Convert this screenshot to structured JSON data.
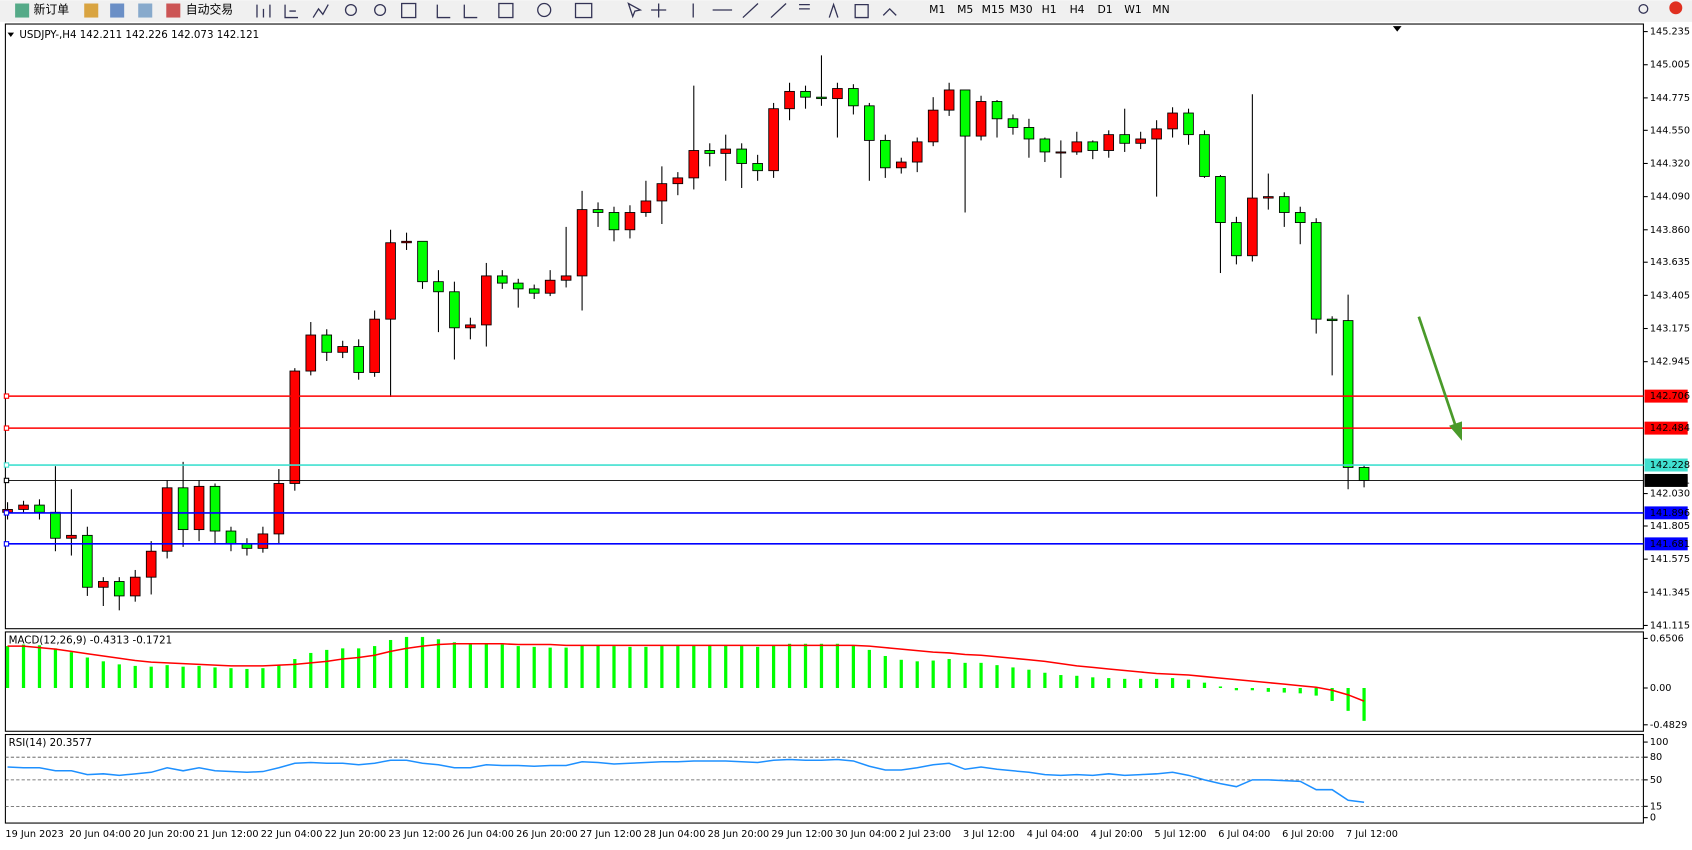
{
  "toolbar": {
    "new_order": "新订单",
    "auto_trading": "自动交易",
    "timeframes": [
      "M1",
      "M5",
      "M15",
      "M30",
      "H1",
      "H4",
      "D1",
      "W1",
      "MN"
    ]
  },
  "chart_data": [
    {
      "type": "candlestick",
      "title": "USDJPY-,H4  142.211 142.226 142.073 142.121",
      "categories": [
        "19 Jun 2023",
        null,
        null,
        null,
        "20 Jun 04:00",
        null,
        null,
        null,
        "20 Jun 20:00",
        null,
        null,
        null,
        "21 Jun 12:00",
        null,
        null,
        null,
        "22 Jun 04:00",
        null,
        null,
        null,
        "22 Jun 20:00",
        null,
        null,
        null,
        "23 Jun 12:00",
        null,
        null,
        null,
        "26 Jun 04:00",
        null,
        null,
        null,
        "26 Jun 20:00",
        null,
        null,
        null,
        "27 Jun 12:00",
        null,
        null,
        null,
        "28 Jun 04:00",
        null,
        null,
        null,
        "28 Jun 20:00",
        null,
        null,
        null,
        "29 Jun 12:00",
        null,
        null,
        null,
        "30 Jun 04:00",
        null,
        null,
        null,
        "2 Jul 23:00",
        null,
        null,
        null,
        "3 Jul 12:00",
        null,
        null,
        null,
        "4 Jul 04:00",
        null,
        null,
        null,
        "4 Jul 20:00",
        null,
        null,
        null,
        "5 Jul 12:00",
        null,
        null,
        null,
        "6 Jul 04:00",
        null,
        null,
        null,
        "6 Jul 20:00",
        null,
        null,
        null,
        "7 Jul 12:00",
        null
      ],
      "open": [
        141.9,
        141.92,
        141.95,
        141.9,
        141.72,
        141.74,
        141.38,
        141.42,
        141.32,
        141.45,
        141.63,
        142.07,
        141.78,
        142.08,
        141.77,
        141.68,
        141.65,
        141.75,
        142.1,
        142.88,
        143.13,
        143.01,
        143.05,
        142.87,
        143.24,
        143.77,
        143.78,
        143.5,
        143.43,
        143.18,
        143.2,
        143.54,
        143.49,
        143.45,
        143.42,
        143.51,
        143.54,
        144.0,
        143.98,
        143.86,
        143.98,
        144.06,
        144.18,
        144.22,
        144.41,
        144.39,
        144.42,
        144.32,
        144.27,
        144.7,
        144.82,
        144.78,
        144.77,
        144.84,
        144.72,
        144.48,
        144.29,
        144.33,
        144.47,
        144.69,
        144.83,
        144.51,
        144.75,
        144.63,
        144.57,
        144.49,
        144.4,
        144.4,
        144.47,
        144.41,
        144.52,
        144.46,
        144.49,
        144.56,
        144.67,
        144.52,
        144.23,
        143.91,
        143.68,
        144.08,
        144.09,
        143.98,
        143.91,
        143.24,
        143.23,
        142.211
      ],
      "high": [
        141.97,
        141.98,
        141.99,
        142.22,
        142.06,
        141.8,
        141.45,
        141.45,
        141.5,
        141.7,
        142.12,
        142.25,
        142.12,
        142.1,
        141.8,
        141.72,
        141.8,
        142.2,
        142.9,
        143.22,
        143.17,
        143.09,
        143.1,
        143.3,
        143.86,
        143.84,
        143.78,
        143.58,
        143.5,
        143.25,
        143.63,
        143.58,
        143.52,
        143.48,
        143.58,
        143.88,
        144.13,
        144.05,
        144.02,
        144.03,
        144.2,
        144.3,
        144.26,
        144.86,
        144.46,
        144.52,
        144.46,
        144.38,
        144.74,
        144.88,
        144.86,
        145.07,
        144.88,
        144.87,
        144.74,
        144.52,
        144.36,
        144.5,
        144.78,
        144.88,
        144.83,
        144.79,
        144.76,
        144.66,
        144.63,
        144.5,
        144.48,
        144.54,
        144.48,
        144.55,
        144.7,
        144.54,
        144.62,
        144.71,
        144.7,
        144.55,
        144.24,
        143.95,
        144.8,
        144.25,
        144.12,
        144.02,
        143.94,
        143.26,
        143.41,
        142.226
      ],
      "low": [
        141.85,
        141.9,
        141.85,
        141.63,
        141.6,
        141.32,
        141.25,
        141.22,
        141.28,
        141.33,
        141.58,
        141.66,
        141.7,
        141.68,
        141.63,
        141.6,
        141.62,
        141.68,
        142.05,
        142.85,
        142.95,
        142.97,
        142.82,
        142.84,
        142.7,
        143.72,
        143.45,
        143.15,
        142.96,
        143.1,
        143.05,
        143.45,
        143.32,
        143.38,
        143.4,
        143.46,
        143.3,
        143.88,
        143.78,
        143.8,
        143.95,
        143.9,
        144.1,
        144.14,
        144.3,
        144.2,
        144.15,
        144.2,
        144.22,
        144.62,
        144.7,
        144.72,
        144.5,
        144.66,
        144.2,
        144.22,
        144.25,
        144.26,
        144.44,
        144.65,
        143.98,
        144.48,
        144.5,
        144.52,
        144.36,
        144.33,
        144.22,
        144.38,
        144.35,
        144.36,
        144.4,
        144.42,
        144.09,
        144.5,
        144.45,
        144.22,
        143.56,
        143.62,
        143.64,
        144.0,
        143.88,
        143.76,
        143.14,
        142.85,
        142.06,
        142.073
      ],
      "close": [
        141.92,
        141.95,
        141.9,
        141.72,
        141.74,
        141.38,
        141.42,
        141.32,
        141.45,
        141.63,
        142.07,
        141.78,
        142.08,
        141.77,
        141.68,
        141.65,
        141.75,
        142.1,
        142.88,
        143.13,
        143.01,
        143.05,
        142.87,
        143.24,
        143.77,
        143.78,
        143.5,
        143.43,
        143.18,
        143.2,
        143.54,
        143.49,
        143.45,
        143.42,
        143.51,
        143.54,
        144.0,
        143.98,
        143.86,
        143.98,
        144.06,
        144.18,
        144.22,
        144.41,
        144.39,
        144.42,
        144.32,
        144.27,
        144.7,
        144.82,
        144.78,
        144.77,
        144.84,
        144.72,
        144.48,
        144.29,
        144.33,
        144.47,
        144.69,
        144.83,
        144.51,
        144.75,
        144.63,
        144.57,
        144.49,
        144.4,
        144.4,
        144.47,
        144.41,
        144.52,
        144.46,
        144.49,
        144.56,
        144.67,
        144.52,
        144.23,
        143.91,
        143.68,
        144.08,
        144.09,
        143.98,
        143.91,
        143.24,
        143.23,
        142.211,
        142.121
      ],
      "up_color": "#ff0000",
      "down_color": "#00ff00",
      "ylim": [
        141.115,
        145.235
      ],
      "yticks": [
        145.235,
        145.005,
        144.775,
        {
          "value": 144.55,
          "label": "144.550"
        },
        {
          "value": 144.32,
          "label": "144.320"
        },
        {
          "value": 144.09,
          "label": "144.090"
        },
        {
          "value": 143.86,
          "label": "143.860"
        },
        143.635,
        143.405,
        143.175,
        142.945,
        {
          "value": 142.03,
          "label": "142.030"
        },
        141.805,
        141.575,
        141.345,
        141.115
      ],
      "levels": [
        {
          "value": 142.706,
          "color": "#ff0000"
        },
        {
          "value": 142.484,
          "color": "#ff0000"
        },
        {
          "value": 142.228,
          "color": "#40e0d0"
        },
        {
          "value": 142.121,
          "color": "#000000"
        },
        {
          "value": 141.896,
          "color": "#0000ff"
        },
        {
          "value": 141.681,
          "color": "#0000ff"
        }
      ]
    },
    {
      "type": "macd",
      "title": "MACD(12,26,9) -0.4313 -0.1721",
      "histogram": {
        "color": "#00ff00",
        "values": [
          0.55,
          0.57,
          0.56,
          0.52,
          0.47,
          0.4,
          0.35,
          0.31,
          0.29,
          0.28,
          0.3,
          0.28,
          0.29,
          0.27,
          0.26,
          0.25,
          0.26,
          0.3,
          0.38,
          0.46,
          0.5,
          0.52,
          0.52,
          0.55,
          0.63,
          0.67,
          0.67,
          0.64,
          0.6,
          0.58,
          0.58,
          0.57,
          0.55,
          0.54,
          0.53,
          0.53,
          0.56,
          0.56,
          0.55,
          0.54,
          0.54,
          0.55,
          0.55,
          0.56,
          0.56,
          0.56,
          0.55,
          0.54,
          0.56,
          0.58,
          0.58,
          0.58,
          0.58,
          0.56,
          0.5,
          0.42,
          0.37,
          0.35,
          0.36,
          0.38,
          0.33,
          0.33,
          0.3,
          0.27,
          0.24,
          0.2,
          0.17,
          0.16,
          0.14,
          0.13,
          0.12,
          0.12,
          0.12,
          0.13,
          0.11,
          0.07,
          0.02,
          -0.03,
          -0.03,
          -0.05,
          -0.06,
          -0.07,
          -0.1,
          -0.17,
          -0.3,
          -0.4313
        ]
      },
      "signal": {
        "color": "#ff0000",
        "values": [
          0.55,
          0.55,
          0.53,
          0.51,
          0.48,
          0.45,
          0.42,
          0.39,
          0.36,
          0.34,
          0.33,
          0.32,
          0.31,
          0.3,
          0.29,
          0.29,
          0.29,
          0.3,
          0.31,
          0.33,
          0.35,
          0.38,
          0.4,
          0.43,
          0.48,
          0.52,
          0.55,
          0.57,
          0.58,
          0.58,
          0.58,
          0.58,
          0.57,
          0.57,
          0.57,
          0.56,
          0.56,
          0.56,
          0.56,
          0.56,
          0.56,
          0.56,
          0.56,
          0.56,
          0.56,
          0.56,
          0.56,
          0.56,
          0.56,
          0.56,
          0.56,
          0.56,
          0.56,
          0.56,
          0.55,
          0.53,
          0.51,
          0.49,
          0.47,
          0.46,
          0.44,
          0.43,
          0.41,
          0.39,
          0.37,
          0.35,
          0.32,
          0.29,
          0.27,
          0.25,
          0.23,
          0.21,
          0.19,
          0.18,
          0.17,
          0.15,
          0.13,
          0.11,
          0.09,
          0.07,
          0.05,
          0.03,
          0.01,
          -0.03,
          -0.09,
          -0.1721
        ]
      },
      "ylim": [
        -0.4829,
        0.6506
      ],
      "yticks": [
        0.6506,
        {
          "value": 0,
          "label": "0.00"
        },
        -0.4829
      ]
    },
    {
      "type": "line",
      "title": "RSI(14) 20.3577",
      "color": "#1e90ff",
      "values": [
        67,
        66,
        66,
        62,
        62,
        57,
        58,
        56,
        58,
        60,
        66,
        62,
        66,
        62,
        61,
        60,
        61,
        66,
        72,
        73,
        72,
        72,
        70,
        72,
        76,
        76,
        72,
        70,
        66,
        66,
        70,
        69,
        69,
        68,
        69,
        69,
        74,
        73,
        71,
        72,
        73,
        74,
        74,
        75,
        75,
        75,
        74,
        73,
        76,
        77,
        76,
        76,
        77,
        75,
        68,
        63,
        63,
        66,
        70,
        72,
        64,
        67,
        64,
        62,
        60,
        57,
        56,
        57,
        56,
        58,
        56,
        57,
        58,
        60,
        56,
        50,
        45,
        41,
        50,
        50,
        49,
        48,
        37,
        37,
        23,
        20.3577
      ],
      "ylim": [
        0,
        100
      ],
      "yticks": [
        100,
        80,
        50,
        15,
        0
      ]
    }
  ]
}
